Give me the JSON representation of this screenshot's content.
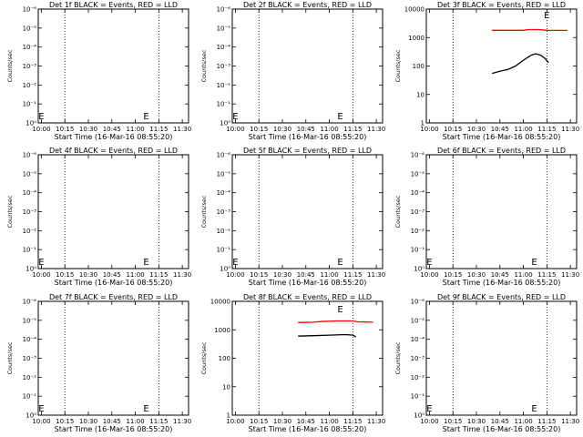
{
  "chart_data": [
    {
      "type": "line",
      "title": "Det 1f BLACK = Events, RED = LLD",
      "xlabel": "Start Time (16-Mar-16 08:55:20)",
      "ylabel": "Counts/sec",
      "x_ticks": [
        "10:00",
        "10:15",
        "10:30",
        "10:45",
        "11:00",
        "11:15",
        "11:30"
      ],
      "y_ticks": [
        "10⁰",
        "10⁻¹",
        "10⁻²",
        "10⁻³",
        "10⁻⁴",
        "10⁻⁵",
        "10⁻⁶"
      ],
      "xlim": [
        "09:58",
        "11:34"
      ],
      "yscale": "log",
      "markers": [
        {
          "label": "E",
          "x": "10:00"
        },
        {
          "label": "E",
          "x": "11:07"
        }
      ],
      "series": []
    },
    {
      "type": "line",
      "title": "Det 2f BLACK = Events, RED = LLD",
      "xlabel": "Start Time (16-Mar-16 08:55:20)",
      "ylabel": "Counts/sec",
      "x_ticks": [
        "10:00",
        "10:15",
        "10:30",
        "10:45",
        "11:00",
        "11:15",
        "11:30"
      ],
      "y_ticks": [
        "10⁰",
        "10⁻¹",
        "10⁻²",
        "10⁻³",
        "10⁻⁴",
        "10⁻⁵",
        "10⁻⁶"
      ],
      "xlim": [
        "09:58",
        "11:34"
      ],
      "yscale": "log",
      "markers": [
        {
          "label": "E",
          "x": "10:00"
        },
        {
          "label": "E",
          "x": "11:07"
        }
      ],
      "series": []
    },
    {
      "type": "line",
      "title": "Det 3f BLACK = Events, RED = LLD",
      "xlabel": "Start Time (16-Mar-16 08:55:20)",
      "ylabel": "Counts/sec",
      "x_ticks": [
        "10:00",
        "10:15",
        "10:30",
        "10:45",
        "11:00",
        "11:15",
        "11:30"
      ],
      "y_ticks": [
        "1",
        "10",
        "100",
        "1000",
        "10000"
      ],
      "xlim": [
        "09:58",
        "11:34"
      ],
      "yscale": "log",
      "markers": [
        {
          "label": "E",
          "x": "11:15"
        }
      ],
      "series": [
        {
          "color": "#ff0000",
          "points": [
            [
              "10:40",
              1800
            ],
            [
              "10:50",
              1800
            ],
            [
              "11:00",
              1800
            ],
            [
              "11:03",
              1900
            ],
            [
              "11:10",
              1900
            ],
            [
              "11:15",
              1800
            ],
            [
              "11:28",
              1780
            ]
          ]
        },
        {
          "color": "#000000",
          "points": [
            [
              "10:40",
              55
            ],
            [
              "10:45",
              65
            ],
            [
              "10:50",
              75
            ],
            [
              "10:55",
              100
            ],
            [
              "11:00",
              160
            ],
            [
              "11:05",
              240
            ],
            [
              "11:08",
              270
            ],
            [
              "11:11",
              240
            ],
            [
              "11:14",
              180
            ],
            [
              "11:16",
              130
            ]
          ]
        }
      ]
    },
    {
      "type": "line",
      "title": "Det 4f BLACK = Events, RED = LLD",
      "xlabel": "Start Time (16-Mar-16 08:55:20)",
      "ylabel": "Counts/sec",
      "x_ticks": [
        "10:00",
        "10:15",
        "10:30",
        "10:45",
        "11:00",
        "11:15",
        "11:30"
      ],
      "y_ticks": [
        "10⁰",
        "10⁻¹",
        "10⁻²",
        "10⁻³",
        "10⁻⁴",
        "10⁻⁵",
        "10⁻⁶"
      ],
      "xlim": [
        "09:58",
        "11:34"
      ],
      "yscale": "log",
      "markers": [
        {
          "label": "E",
          "x": "10:00"
        },
        {
          "label": "E",
          "x": "11:07"
        }
      ],
      "series": []
    },
    {
      "type": "line",
      "title": "Det 5f BLACK = Events, RED = LLD",
      "xlabel": "Start Time (16-Mar-16 08:55:20)",
      "ylabel": "Counts/sec",
      "x_ticks": [
        "10:00",
        "10:15",
        "10:30",
        "10:45",
        "11:00",
        "11:15",
        "11:30"
      ],
      "y_ticks": [
        "10⁰",
        "10⁻¹",
        "10⁻²",
        "10⁻³",
        "10⁻⁴",
        "10⁻⁵",
        "10⁻⁶"
      ],
      "xlim": [
        "09:58",
        "11:34"
      ],
      "yscale": "log",
      "markers": [
        {
          "label": "E",
          "x": "10:00"
        },
        {
          "label": "E",
          "x": "11:07"
        }
      ],
      "series": []
    },
    {
      "type": "line",
      "title": "Det 6f BLACK = Events, RED = LLD",
      "xlabel": "Start Time (16-Mar-16 08:55:20)",
      "ylabel": "Counts/sec",
      "x_ticks": [
        "10:00",
        "10:15",
        "10:30",
        "10:45",
        "11:00",
        "11:15",
        "11:30"
      ],
      "y_ticks": [
        "10⁰",
        "10⁻¹",
        "10⁻²",
        "10⁻³",
        "10⁻⁴",
        "10⁻⁵",
        "10⁻⁶"
      ],
      "xlim": [
        "09:58",
        "11:34"
      ],
      "yscale": "log",
      "markers": [
        {
          "label": "E",
          "x": "10:00"
        },
        {
          "label": "E",
          "x": "11:07"
        }
      ],
      "series": []
    },
    {
      "type": "line",
      "title": "Det 7f BLACK = Events, RED = LLD",
      "xlabel": "Start Time (16-Mar-16 08:55:20)",
      "ylabel": "Counts/sec",
      "x_ticks": [
        "10:00",
        "10:15",
        "10:30",
        "10:45",
        "11:00",
        "11:15",
        "11:30"
      ],
      "y_ticks": [
        "10⁰",
        "10⁻¹",
        "10⁻²",
        "10⁻³",
        "10⁻⁴",
        "10⁻⁵",
        "10⁻⁶"
      ],
      "xlim": [
        "09:58",
        "11:34"
      ],
      "yscale": "log",
      "markers": [
        {
          "label": "E",
          "x": "10:00"
        },
        {
          "label": "E",
          "x": "11:07"
        }
      ],
      "series": []
    },
    {
      "type": "line",
      "title": "Det 8f BLACK = Events, RED = LLD",
      "xlabel": "Start Time (16-Mar-16 08:55:20)",
      "ylabel": "Counts/sec",
      "x_ticks": [
        "10:00",
        "10:15",
        "10:30",
        "10:45",
        "11:00",
        "11:15",
        "11:30"
      ],
      "y_ticks": [
        "1",
        "10",
        "100",
        "1000",
        "10000"
      ],
      "xlim": [
        "09:58",
        "11:34"
      ],
      "yscale": "log",
      "markers": [
        {
          "label": "E",
          "x": "11:07"
        }
      ],
      "series": [
        {
          "color": "#ff0000",
          "points": [
            [
              "10:40",
              1800
            ],
            [
              "10:50",
              1850
            ],
            [
              "10:55",
              1950
            ],
            [
              "11:05",
              2050
            ],
            [
              "11:15",
              2050
            ],
            [
              "11:18",
              1900
            ],
            [
              "11:28",
              1850
            ]
          ]
        },
        {
          "color": "#000000",
          "points": [
            [
              "10:40",
              600
            ],
            [
              "10:50",
              620
            ],
            [
              "11:00",
              650
            ],
            [
              "11:10",
              680
            ],
            [
              "11:15",
              650
            ],
            [
              "11:17",
              560
            ]
          ]
        }
      ]
    },
    {
      "type": "line",
      "title": "Det 9f BLACK = Events, RED = LLD",
      "xlabel": "Start Time (16-Mar-16 08:55:20)",
      "ylabel": "Counts/sec",
      "x_ticks": [
        "10:00",
        "10:15",
        "10:30",
        "10:45",
        "11:00",
        "11:15",
        "11:30"
      ],
      "y_ticks": [
        "10⁰",
        "10⁻¹",
        "10⁻²",
        "10⁻³",
        "10⁻⁴",
        "10⁻⁵",
        "10⁻⁶"
      ],
      "xlim": [
        "09:58",
        "11:34"
      ],
      "yscale": "log",
      "markers": [
        {
          "label": "E",
          "x": "10:00"
        },
        {
          "label": "E",
          "x": "11:07"
        }
      ],
      "series": []
    }
  ]
}
